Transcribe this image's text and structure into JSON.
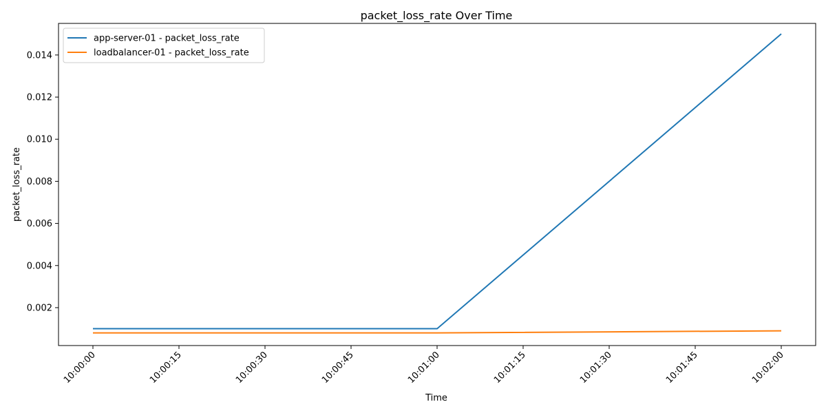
{
  "chart_data": {
    "type": "line",
    "title": "packet_loss_rate Over Time",
    "xlabel": "Time",
    "ylabel": "packet_loss_rate",
    "x": [
      "10:00:00",
      "10:01:00",
      "10:02:00"
    ],
    "x_seconds": [
      0,
      60,
      120
    ],
    "xticks": [
      "10:00:00",
      "10:00:15",
      "10:00:30",
      "10:00:45",
      "10:01:00",
      "10:01:15",
      "10:01:30",
      "10:01:45",
      "10:02:00"
    ],
    "yticks": [
      "0.002",
      "0.004",
      "0.006",
      "0.008",
      "0.010",
      "0.012",
      "0.014"
    ],
    "ylim": [
      0.0002,
      0.0155
    ],
    "grid": false,
    "legend_position": "top-left",
    "series": [
      {
        "name": "app-server-01 - packet_loss_rate",
        "color": "#1f77b4",
        "values": [
          0.001,
          0.001,
          0.015
        ]
      },
      {
        "name": "loadbalancer-01 - packet_loss_rate",
        "color": "#ff7f0e",
        "values": [
          0.0008,
          0.0008,
          0.0009
        ]
      }
    ]
  }
}
